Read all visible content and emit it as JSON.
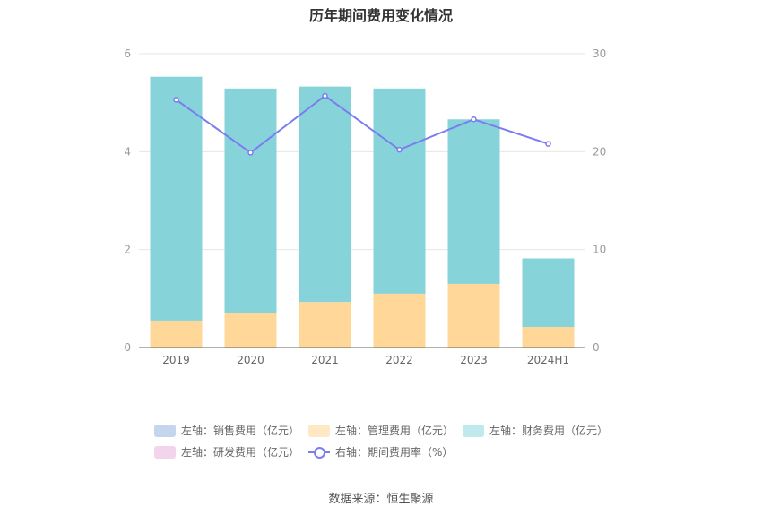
{
  "title": "历年期间费用变化情况",
  "source": "数据来源：恒生聚源",
  "colors": {
    "sales": "#c5d5ee",
    "mgmt": "#ffd899",
    "mgmt_legend": "#ffe8c4",
    "finance": "#86d4da",
    "finance_legend": "#bfe9ec",
    "rd": "#f2d5ec",
    "rate": "#7b7cf0"
  },
  "legend": [
    {
      "label": "左轴：销售费用（亿元）",
      "color_key": "sales"
    },
    {
      "label": "左轴：管理费用（亿元）",
      "color_key": "mgmt_legend"
    },
    {
      "label": "左轴：财务费用（亿元）",
      "color_key": "finance_legend"
    },
    {
      "label": "左轴：研发费用（亿元）",
      "color_key": "rd"
    },
    {
      "label": "右轴：期间费用率（%）",
      "color_key": "rate",
      "type": "line"
    }
  ],
  "chart_data": {
    "type": "bar",
    "title": "历年期间费用变化情况",
    "categories": [
      "2019",
      "2020",
      "2021",
      "2022",
      "2023",
      "2024H1"
    ],
    "stacked": true,
    "series": [
      {
        "name": "左轴：管理费用（亿元）",
        "axis": "left",
        "values": [
          0.55,
          0.7,
          0.93,
          1.1,
          1.3,
          0.42
        ]
      },
      {
        "name": "左轴：财务费用（亿元）",
        "axis": "left",
        "values": [
          4.98,
          4.59,
          4.4,
          4.19,
          3.36,
          1.4
        ]
      },
      {
        "name": "右轴：期间费用率（%）",
        "axis": "right",
        "type": "line",
        "values": [
          25.3,
          19.9,
          25.7,
          20.2,
          23.3,
          20.8
        ]
      }
    ],
    "left_axis": {
      "ylim": [
        0,
        6
      ],
      "ticks": [
        "0",
        "2",
        "4",
        "6"
      ]
    },
    "right_axis": {
      "ylim": [
        0,
        30
      ],
      "ticks": [
        "0",
        "10",
        "20",
        "30"
      ]
    },
    "grid": true,
    "legend_position": "bottom"
  }
}
